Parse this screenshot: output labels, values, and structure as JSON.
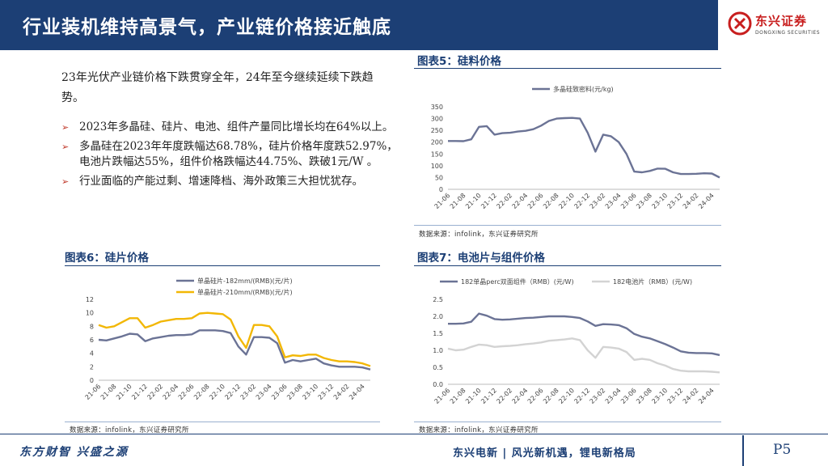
{
  "header": {
    "title": "行业装机维持高景气，产业链价格接近触底"
  },
  "logo": {
    "cn": "东兴证券",
    "en": "DONGXING SECURITIES",
    "brand_color": "#c81e1e"
  },
  "intro": "23年光伏产业链价格下跌贯穿全年，24年至今继续延续下跌趋势。",
  "bullets": [
    "2023年多晶硅、硅片、电池、组件产量同比增长均在64%以上。",
    "多晶硅在2023年年度跌幅达68.78%，硅片价格年度跌52.97%，电池片跌幅达55%，组件价格跌幅达44.75%、跌破1元/W 。",
    "行业面临的产能过剩、增速降档、海外政策三大担忧犹存。"
  ],
  "figures": {
    "fig5": {
      "title": "图表5：硅料价格",
      "source": "数据来源：infolink，东兴证券研究所"
    },
    "fig6": {
      "title": "图表6：硅片价格",
      "source": "数据来源：infolink，东兴证券研究所"
    },
    "fig7": {
      "title": "图表7：电池片与组件价格",
      "source": "数据来源：infolink，东兴证券研究所"
    }
  },
  "chart_data": [
    {
      "id": "fig5",
      "type": "line",
      "x": [
        "21-06",
        "21-07",
        "21-08",
        "21-09",
        "21-10",
        "21-11",
        "21-12",
        "22-01",
        "22-02",
        "22-03",
        "22-04",
        "22-05",
        "22-06",
        "22-07",
        "22-08",
        "22-09",
        "22-10",
        "22-11",
        "22-12",
        "23-01",
        "23-02",
        "23-03",
        "23-04",
        "23-05",
        "23-06",
        "23-07",
        "23-08",
        "23-09",
        "23-10",
        "23-11",
        "23-12",
        "24-01",
        "24-02",
        "24-03",
        "24-04",
        "24-05"
      ],
      "xticks": [
        "21-06",
        "21-08",
        "21-10",
        "21-12",
        "22-02",
        "22-04",
        "22-06",
        "22-08",
        "22-10",
        "22-12",
        "23-02",
        "23-04",
        "23-06",
        "23-08",
        "23-10",
        "23-12",
        "24-02",
        "24-04"
      ],
      "series": [
        {
          "name": "多晶硅致密料(元/kg)",
          "color": "#6b7395",
          "values": [
            205,
            205,
            204,
            212,
            265,
            268,
            232,
            238,
            240,
            245,
            248,
            255,
            270,
            290,
            300,
            302,
            303,
            300,
            240,
            160,
            232,
            225,
            200,
            150,
            75,
            72,
            78,
            88,
            87,
            72,
            65,
            65,
            66,
            68,
            67,
            50
          ]
        }
      ],
      "ylim": [
        0,
        350
      ],
      "yticks": [
        0,
        50,
        100,
        150,
        200,
        250,
        300,
        350
      ],
      "legend": "top",
      "xlabel": "",
      "ylabel": "",
      "title": ""
    },
    {
      "id": "fig6",
      "type": "line",
      "x": [
        "21-06",
        "21-07",
        "21-08",
        "21-09",
        "21-10",
        "21-11",
        "21-12",
        "22-01",
        "22-02",
        "22-03",
        "22-04",
        "22-05",
        "22-06",
        "22-07",
        "22-08",
        "22-09",
        "22-10",
        "22-11",
        "22-12",
        "23-01",
        "23-02",
        "23-03",
        "23-04",
        "23-05",
        "23-06",
        "23-07",
        "23-08",
        "23-09",
        "23-10",
        "23-11",
        "23-12",
        "24-01",
        "24-02",
        "24-03",
        "24-04",
        "24-05"
      ],
      "xticks": [
        "21-06",
        "21-08",
        "21-10",
        "21-12",
        "22-02",
        "22-04",
        "22-06",
        "22-08",
        "22-10",
        "22-12",
        "23-02",
        "23-04",
        "23-06",
        "23-08",
        "23-10",
        "23-12",
        "24-02",
        "24-04"
      ],
      "series": [
        {
          "name": "单晶硅片-182mm/(RMB)(元/片)",
          "color": "#6b7395",
          "values": [
            6.0,
            5.9,
            6.2,
            6.5,
            6.9,
            6.8,
            5.8,
            6.2,
            6.4,
            6.6,
            6.7,
            6.7,
            6.8,
            7.4,
            7.4,
            7.4,
            7.3,
            7.0,
            5.0,
            3.8,
            6.4,
            6.4,
            6.3,
            5.5,
            2.6,
            3.0,
            2.8,
            3.0,
            3.2,
            2.5,
            2.2,
            2.0,
            2.0,
            2.0,
            1.9,
            1.6
          ]
        },
        {
          "name": "单晶硅片-210mm/(RMB)(元/片)",
          "color": "#f2b705",
          "values": [
            8.2,
            7.8,
            8.0,
            8.6,
            9.2,
            9.2,
            7.8,
            8.2,
            8.7,
            8.9,
            9.1,
            9.1,
            9.2,
            9.9,
            10.0,
            9.9,
            9.8,
            9.0,
            6.5,
            4.8,
            8.2,
            8.2,
            8.0,
            6.5,
            3.4,
            3.7,
            3.6,
            3.8,
            3.8,
            3.3,
            3.0,
            2.8,
            2.8,
            2.7,
            2.5,
            2.1
          ]
        }
      ],
      "ylim": [
        0,
        12
      ],
      "yticks": [
        0,
        2,
        4,
        6,
        8,
        10,
        12
      ],
      "legend": "top",
      "xlabel": "",
      "ylabel": "",
      "title": ""
    },
    {
      "id": "fig7",
      "type": "line",
      "x": [
        "21-06",
        "21-07",
        "21-08",
        "21-09",
        "21-10",
        "21-11",
        "21-12",
        "22-01",
        "22-02",
        "22-03",
        "22-04",
        "22-05",
        "22-06",
        "22-07",
        "22-08",
        "22-09",
        "22-10",
        "22-11",
        "22-12",
        "23-01",
        "23-02",
        "23-03",
        "23-04",
        "23-05",
        "23-06",
        "23-07",
        "23-08",
        "23-09",
        "23-10",
        "23-11",
        "23-12",
        "24-01",
        "24-02",
        "24-03",
        "24-04",
        "24-05"
      ],
      "xticks": [
        "21-06",
        "21-08",
        "21-10",
        "21-12",
        "22-02",
        "22-04",
        "22-06",
        "22-08",
        "22-10",
        "22-12",
        "23-02",
        "23-04",
        "23-06",
        "23-08",
        "23-10",
        "23-12",
        "24-02",
        "24-04"
      ],
      "series": [
        {
          "name": "182单晶perc双面组件（RMB）(元/W)",
          "color": "#6b7395",
          "values": [
            1.78,
            1.78,
            1.79,
            1.84,
            2.08,
            2.02,
            1.92,
            1.9,
            1.91,
            1.93,
            1.95,
            1.96,
            1.98,
            2.0,
            2.0,
            2.0,
            1.98,
            1.95,
            1.85,
            1.72,
            1.77,
            1.76,
            1.74,
            1.65,
            1.48,
            1.4,
            1.35,
            1.27,
            1.18,
            1.08,
            0.97,
            0.93,
            0.92,
            0.92,
            0.91,
            0.86
          ]
        },
        {
          "name": "182电池片（RMB）(元/W)",
          "color": "#d3d3d3",
          "values": [
            1.05,
            1.0,
            1.02,
            1.1,
            1.17,
            1.15,
            1.1,
            1.12,
            1.13,
            1.15,
            1.18,
            1.2,
            1.23,
            1.28,
            1.3,
            1.32,
            1.35,
            1.3,
            1.0,
            0.78,
            1.1,
            1.08,
            1.05,
            0.95,
            0.72,
            0.75,
            0.72,
            0.62,
            0.55,
            0.45,
            0.4,
            0.38,
            0.38,
            0.38,
            0.37,
            0.35
          ]
        }
      ],
      "ylim": [
        0,
        2.5
      ],
      "yticks": [
        0.0,
        0.5,
        1.0,
        1.5,
        2.0,
        2.5
      ],
      "legend": "top",
      "xlabel": "",
      "ylabel": "",
      "title": ""
    }
  ],
  "footer": {
    "left": "东方财智  兴盛之源",
    "middle": "东兴电新 | 风光新机遇，锂电新格局",
    "page": "P5"
  }
}
